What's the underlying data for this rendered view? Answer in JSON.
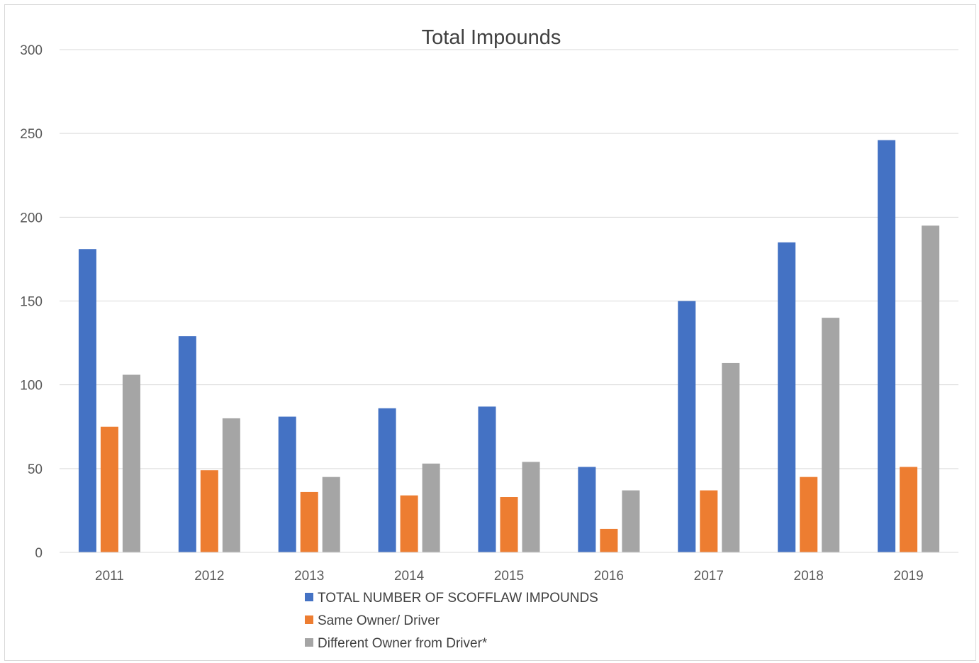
{
  "chart_data": {
    "type": "bar",
    "title": "Total Impounds",
    "categories": [
      "2011",
      "2012",
      "2013",
      "2014",
      "2015",
      "2016",
      "2017",
      "2018",
      "2019"
    ],
    "series": [
      {
        "name": "TOTAL NUMBER OF SCOFFLAW IMPOUNDS",
        "color": "#4472c4",
        "values": [
          181,
          129,
          81,
          86,
          87,
          51,
          150,
          185,
          246
        ]
      },
      {
        "name": "Same Owner/ Driver",
        "color": "#ed7d31",
        "values": [
          75,
          49,
          36,
          34,
          33,
          14,
          37,
          45,
          51
        ]
      },
      {
        "name": "Different Owner from Driver*",
        "color": "#a5a5a5",
        "values": [
          106,
          80,
          45,
          53,
          54,
          37,
          113,
          140,
          195
        ]
      }
    ],
    "ylim": [
      0,
      300
    ],
    "yticks": [
      0,
      50,
      100,
      150,
      200,
      250,
      300
    ],
    "grid": true,
    "legend_position": "bottom"
  }
}
